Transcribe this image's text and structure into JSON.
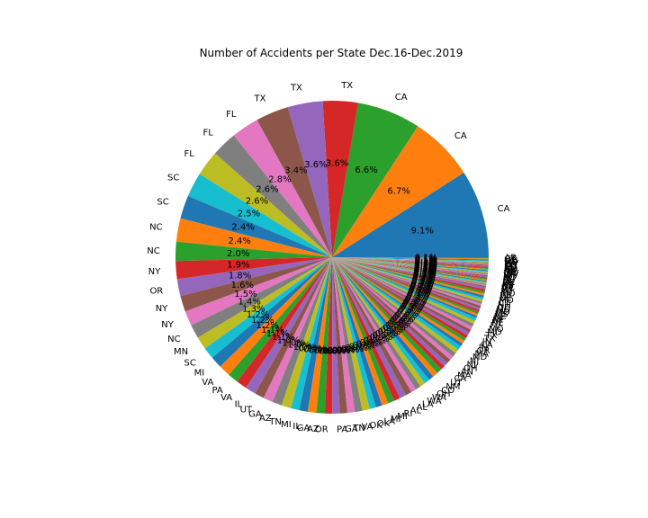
{
  "chart_data": {
    "type": "pie",
    "title": "Number of Accidents per State Dec.16-Dec.2019",
    "start_angle_deg": 0,
    "direction": "counterclockwise",
    "autopct_format": "%.1f%%",
    "labels": [
      "CA",
      "CA",
      "CA",
      "TX",
      "TX",
      "TX",
      "FL",
      "FL",
      "FL",
      "SC",
      "SC",
      "NC",
      "NC",
      "NY",
      "OR",
      "NY",
      "NY",
      "NC",
      "MN",
      "SC",
      "MI",
      "VA",
      "PA",
      "VA",
      "IL",
      "UT",
      "GA",
      "AZ",
      "TN",
      "MI",
      "IL",
      "GA",
      "AZ",
      "OR",
      "PA",
      "GA",
      "TN",
      "VA",
      "OK",
      "OK",
      "LA",
      "MI",
      "MI",
      "RI",
      "AL",
      "AL",
      "LA",
      "WA",
      "WA",
      "OH",
      "CO",
      "NM",
      "UT",
      "CA",
      "MA",
      "AN",
      "OH",
      "NJ",
      "NJ",
      "MD",
      "MA",
      "OR",
      "IN",
      "CA",
      "IN",
      "TX",
      "TX",
      "MD",
      "MO",
      "FL",
      "NE",
      "NJ",
      "KY",
      "NE",
      "MS",
      "MD",
      "MS",
      "OH",
      "NH",
      "CT",
      "MO",
      "DE",
      "WI",
      "MO",
      "WI",
      "WI",
      "VT",
      "DC",
      "KS",
      "KS",
      "KY",
      "DE",
      "NV",
      "IA",
      "IA",
      "MT",
      "ID",
      "WV",
      "ID",
      "WV",
      "ME",
      "AR",
      "ND",
      "ND",
      "SD",
      "SD",
      "WY",
      "WY",
      "ME",
      "VT",
      "NH",
      "CT",
      "AR"
    ],
    "values": [
      8.3,
      6.1,
      6.0,
      3.3,
      3.3,
      3.1,
      2.6,
      2.4,
      2.4,
      2.3,
      2.2,
      2.2,
      1.8,
      1.7,
      1.6,
      1.5,
      1.4,
      1.3,
      1.2,
      1.1,
      1.1,
      1.1,
      1.0,
      1.0,
      1.0,
      0.9,
      0.9,
      0.9,
      0.9,
      0.8,
      0.8,
      0.8,
      0.8,
      0.7,
      0.7,
      0.7,
      0.7,
      0.7,
      0.7,
      0.6,
      0.6,
      0.6,
      0.6,
      0.6,
      0.6,
      0.6,
      0.5,
      0.5,
      0.5,
      0.5,
      0.5,
      0.5,
      0.5,
      0.4,
      0.4,
      0.4,
      0.4,
      0.4,
      0.4,
      0.4,
      0.3,
      0.3,
      0.3,
      0.3,
      0.3,
      0.3,
      0.3,
      0.3,
      0.3,
      0.3,
      0.2,
      0.2,
      0.2,
      0.2,
      0.2,
      0.2,
      0.2,
      0.2,
      0.2,
      0.2,
      0.2,
      0.2,
      0.2,
      0.2,
      0.2,
      0.1,
      0.1,
      0.1,
      0.1,
      0.1,
      0.1,
      0.1,
      0.1,
      0.1,
      0.1,
      0.1,
      0.1,
      0.1,
      0.1,
      0.1,
      0.1,
      0.1,
      0.1,
      0.1,
      0.1,
      0.1,
      0.1,
      0.1,
      0.1,
      0.1,
      0.1,
      0.1,
      0.1
    ],
    "colors": [
      "#1f77b4",
      "#ff7f0e",
      "#2ca02c",
      "#d62728",
      "#9467bd",
      "#8c564b",
      "#e377c2",
      "#7f7f7f",
      "#bcbd22",
      "#17becf"
    ]
  }
}
